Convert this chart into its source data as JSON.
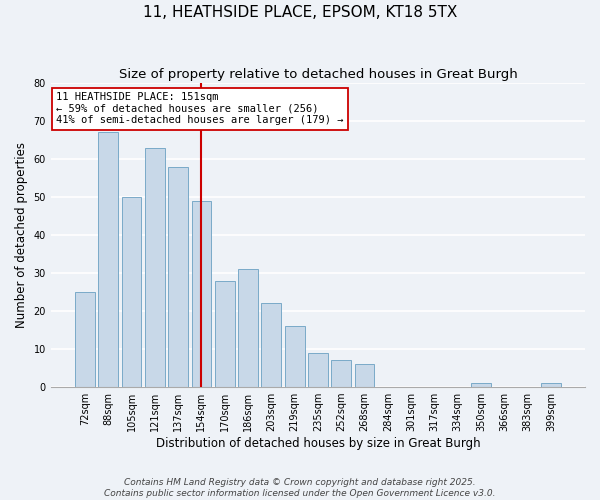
{
  "title": "11, HEATHSIDE PLACE, EPSOM, KT18 5TX",
  "subtitle": "Size of property relative to detached houses in Great Burgh",
  "xlabel": "Distribution of detached houses by size in Great Burgh",
  "ylabel": "Number of detached properties",
  "bar_labels": [
    "72sqm",
    "88sqm",
    "105sqm",
    "121sqm",
    "137sqm",
    "154sqm",
    "170sqm",
    "186sqm",
    "203sqm",
    "219sqm",
    "235sqm",
    "252sqm",
    "268sqm",
    "284sqm",
    "301sqm",
    "317sqm",
    "334sqm",
    "350sqm",
    "366sqm",
    "383sqm",
    "399sqm"
  ],
  "bar_values": [
    25,
    67,
    50,
    63,
    58,
    49,
    28,
    31,
    22,
    16,
    9,
    7,
    6,
    0,
    0,
    0,
    0,
    1,
    0,
    0,
    1
  ],
  "bar_color": "#c8d8e8",
  "bar_edgecolor": "#7aaac8",
  "vline_color": "#cc0000",
  "vline_bar_index": 5,
  "annotation_line1": "11 HEATHSIDE PLACE: 151sqm",
  "annotation_line2": "← 59% of detached houses are smaller (256)",
  "annotation_line3": "41% of semi-detached houses are larger (179) →",
  "annotation_box_edgecolor": "#cc0000",
  "annotation_box_facecolor": "#ffffff",
  "ylim": [
    0,
    80
  ],
  "yticks": [
    0,
    10,
    20,
    30,
    40,
    50,
    60,
    70,
    80
  ],
  "footer_line1": "Contains HM Land Registry data © Crown copyright and database right 2025.",
  "footer_line2": "Contains public sector information licensed under the Open Government Licence v3.0.",
  "background_color": "#eef2f7",
  "grid_color": "#ffffff",
  "title_fontsize": 11,
  "subtitle_fontsize": 9.5,
  "axis_label_fontsize": 8.5,
  "tick_fontsize": 7,
  "annotation_fontsize": 7.5,
  "footer_fontsize": 6.5
}
